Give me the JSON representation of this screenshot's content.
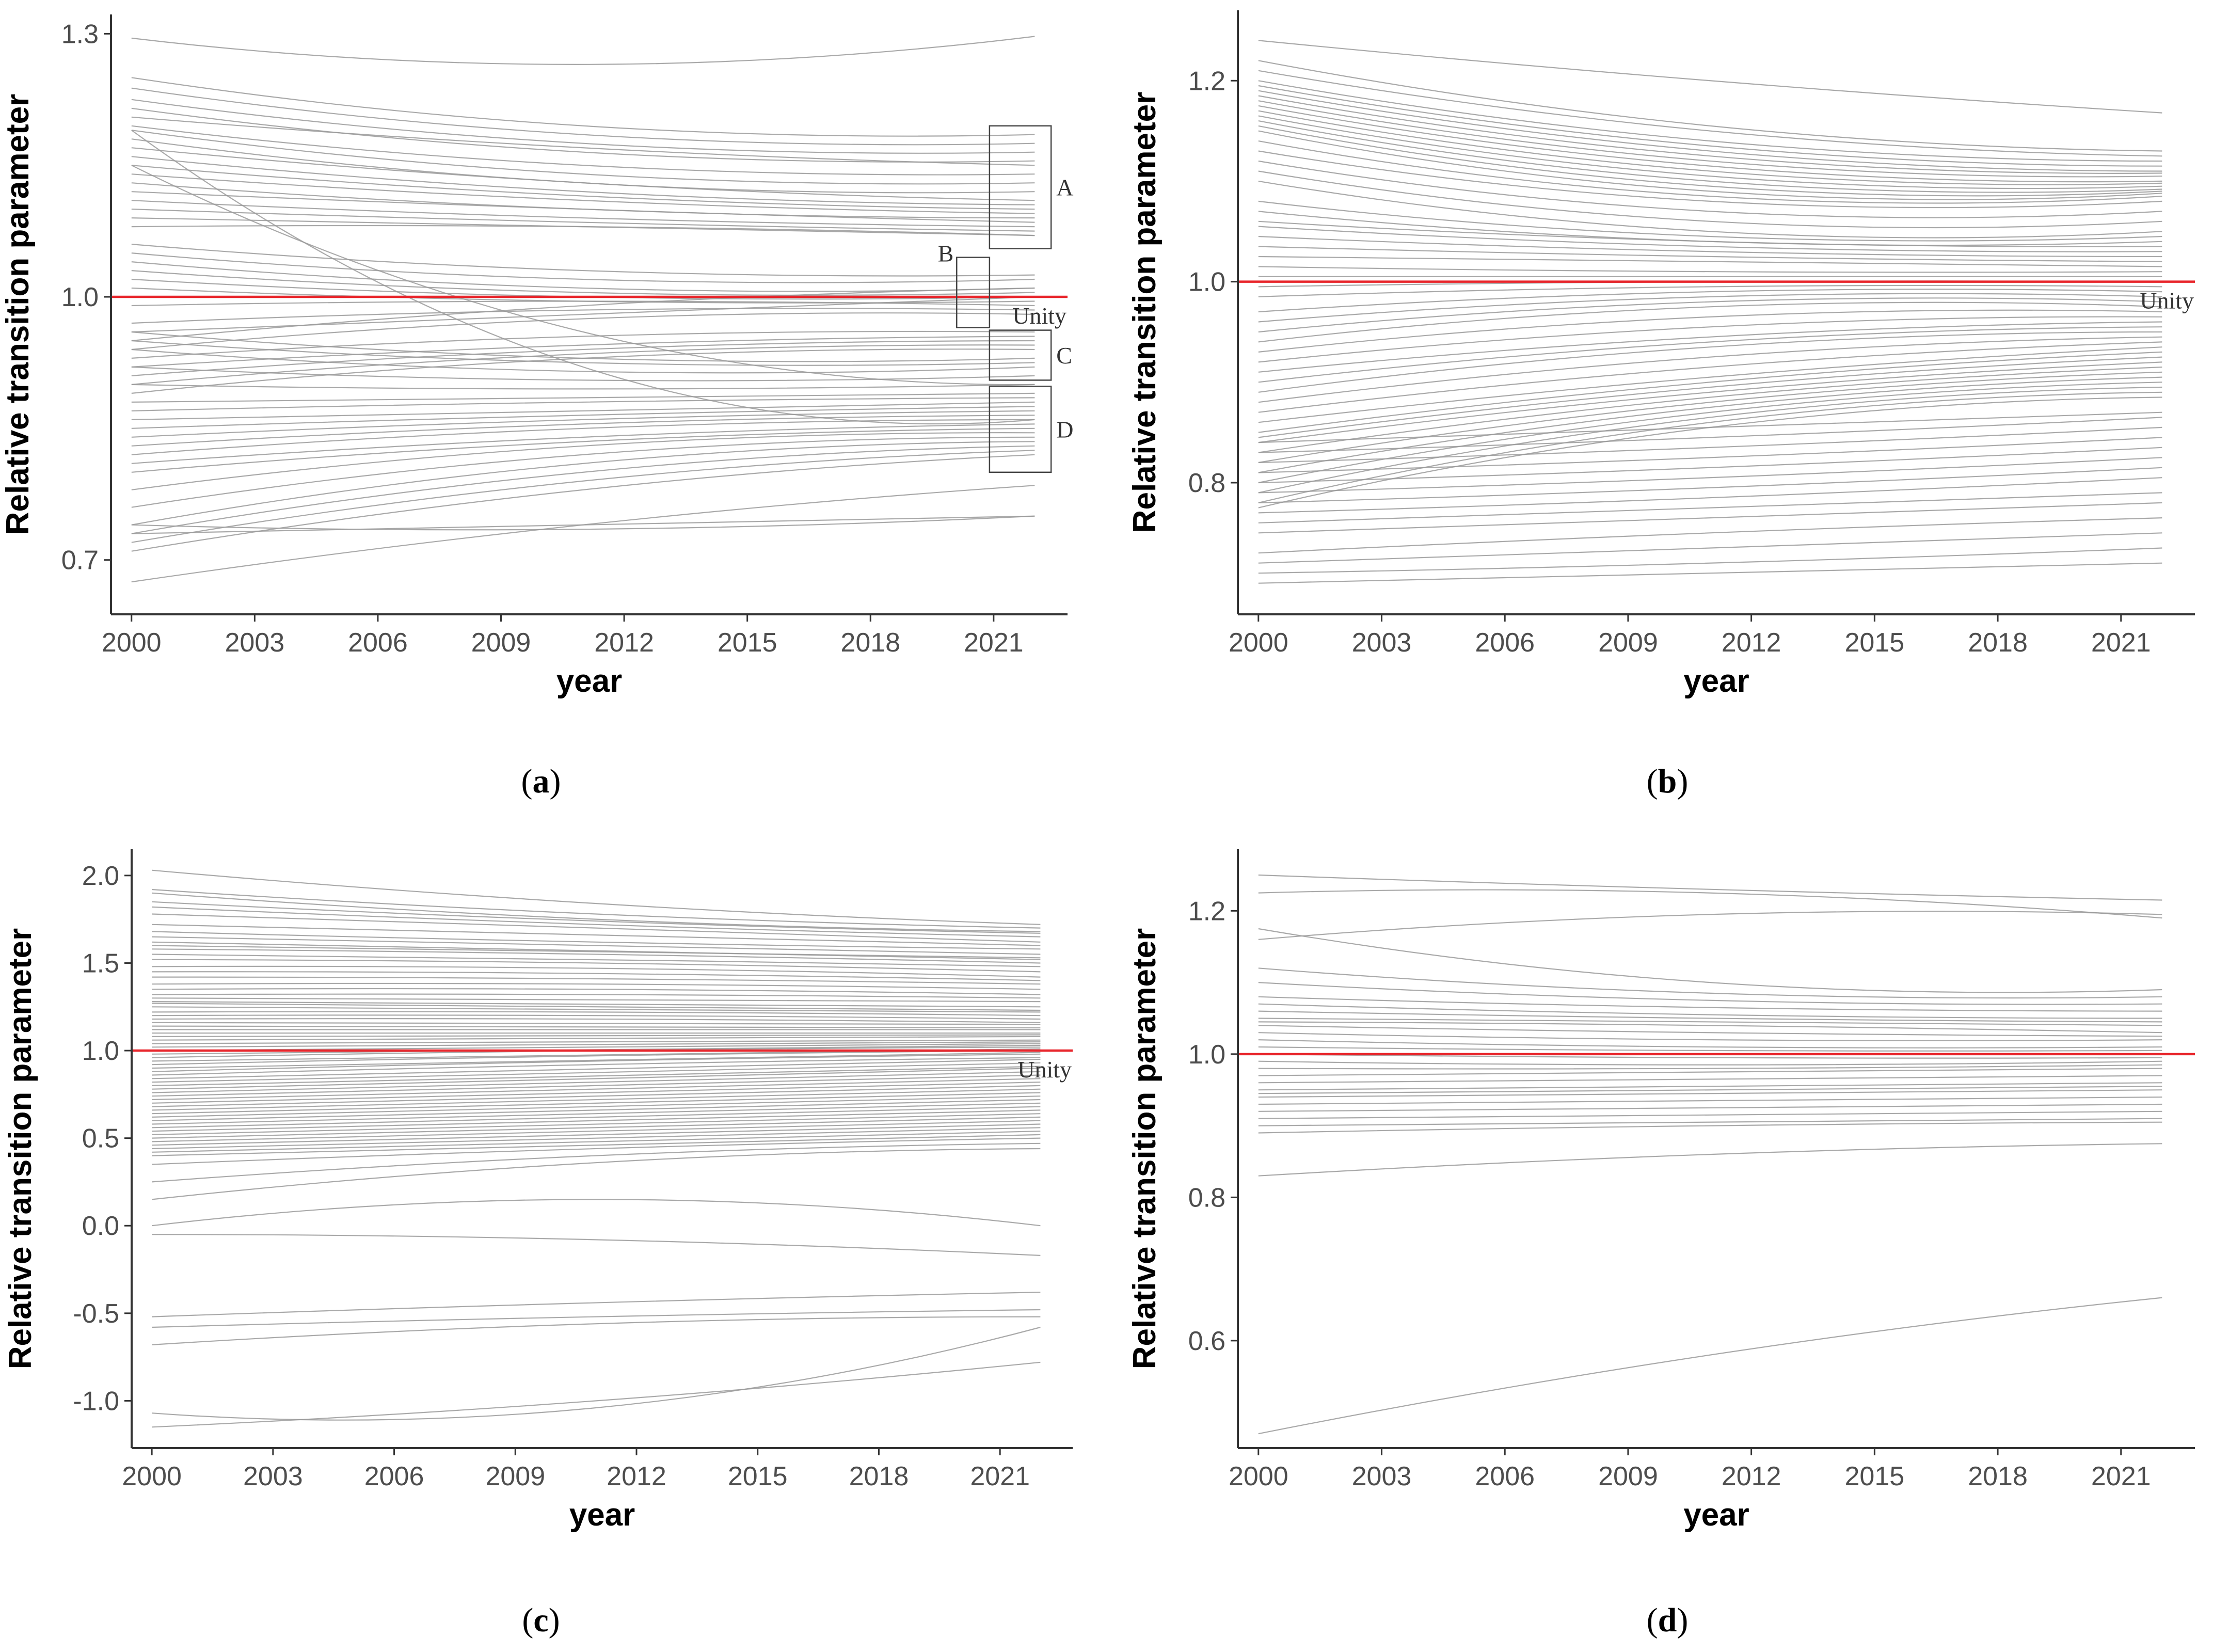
{
  "colors": {
    "series": "#9a9a9a",
    "unity": "#e8262c",
    "axis": "#333333",
    "annotation_box": "#444444"
  },
  "chart_data": [
    {
      "id": "a",
      "type": "line",
      "panel_label": "(a)",
      "panel_letter": "a",
      "xlabel": "year",
      "ylabel": "Relative transition parameter",
      "xlim": [
        1999.5,
        2022.8
      ],
      "ylim": [
        0.638,
        1.322
      ],
      "xticks": [
        2000,
        2003,
        2006,
        2009,
        2012,
        2015,
        2018,
        2021
      ],
      "yticks": [
        0.7,
        1.0,
        1.3
      ],
      "ytick_labels": [
        "0.7",
        "1.0",
        "1.3"
      ],
      "x_start": 2000,
      "x_end": 2022,
      "reference_line": {
        "y": 1.0,
        "label": "Unity"
      },
      "series_count": 60,
      "series_profile": [
        [
          1.295,
          1.265,
          1.297
        ],
        [
          1.25,
          1.195,
          1.185
        ],
        [
          1.238,
          1.185,
          1.175
        ],
        [
          1.225,
          1.175,
          1.165
        ],
        [
          1.215,
          1.165,
          1.155
        ],
        [
          1.205,
          1.17,
          1.15
        ],
        [
          1.195,
          1.15,
          1.14
        ],
        [
          1.19,
          1.14,
          1.13
        ],
        [
          1.18,
          1.13,
          1.12
        ],
        [
          1.17,
          1.13,
          1.11
        ],
        [
          1.16,
          1.12,
          1.105
        ],
        [
          1.15,
          1.115,
          1.1
        ],
        [
          1.14,
          1.11,
          1.095
        ],
        [
          1.13,
          1.1,
          1.09
        ],
        [
          1.12,
          1.1,
          1.085
        ],
        [
          1.11,
          1.09,
          1.08
        ],
        [
          1.1,
          1.085,
          1.075
        ],
        [
          1.09,
          1.08,
          1.07
        ],
        [
          1.08,
          1.08,
          1.07
        ],
        [
          1.19,
          0.92,
          0.86
        ],
        [
          1.15,
          0.96,
          0.9
        ],
        [
          1.06,
          1.03,
          1.025
        ],
        [
          1.05,
          1.02,
          1.02
        ],
        [
          1.04,
          1.01,
          1.01
        ],
        [
          1.03,
          1.005,
          1.005
        ],
        [
          1.02,
          1.0,
          1.0
        ],
        [
          1.01,
          0.995,
          0.995
        ],
        [
          0.99,
          0.995,
          0.99
        ],
        [
          0.97,
          0.985,
          0.985
        ],
        [
          0.96,
          0.98,
          1.0
        ],
        [
          0.95,
          0.99,
          1.01
        ],
        [
          0.94,
          0.975,
          0.98
        ],
        [
          0.93,
          0.955,
          0.96
        ],
        [
          0.92,
          0.945,
          0.955
        ],
        [
          0.91,
          0.94,
          0.95
        ],
        [
          0.9,
          0.935,
          0.945
        ],
        [
          0.89,
          0.93,
          0.94
        ],
        [
          0.96,
          0.93,
          0.93
        ],
        [
          0.95,
          0.925,
          0.925
        ],
        [
          0.94,
          0.915,
          0.92
        ],
        [
          0.92,
          0.905,
          0.91
        ],
        [
          0.9,
          0.895,
          0.9
        ],
        [
          0.88,
          0.885,
          0.89
        ],
        [
          0.87,
          0.88,
          0.885
        ],
        [
          0.86,
          0.87,
          0.88
        ],
        [
          0.85,
          0.865,
          0.875
        ],
        [
          0.84,
          0.86,
          0.87
        ],
        [
          0.83,
          0.855,
          0.865
        ],
        [
          0.82,
          0.85,
          0.86
        ],
        [
          0.81,
          0.84,
          0.855
        ],
        [
          0.8,
          0.835,
          0.85
        ],
        [
          0.78,
          0.83,
          0.845
        ],
        [
          0.76,
          0.82,
          0.84
        ],
        [
          0.74,
          0.81,
          0.835
        ],
        [
          0.73,
          0.8,
          0.83
        ],
        [
          0.72,
          0.79,
          0.825
        ],
        [
          0.71,
          0.78,
          0.82
        ],
        [
          0.74,
          0.735,
          0.75
        ],
        [
          0.73,
          0.74,
          0.75
        ],
        [
          0.675,
          0.74,
          0.785
        ]
      ],
      "annotations": [
        {
          "label": "A",
          "x0": 2020.9,
          "x1": 2022.4,
          "y0": 1.055,
          "y1": 1.195
        },
        {
          "label": "B",
          "x0": 2020.1,
          "x1": 2020.9,
          "y0": 0.965,
          "y1": 1.045
        },
        {
          "label": "C",
          "x0": 2020.9,
          "x1": 2022.4,
          "y0": 0.905,
          "y1": 0.962
        },
        {
          "label": "D",
          "x0": 2020.9,
          "x1": 2022.4,
          "y0": 0.8,
          "y1": 0.898
        }
      ]
    },
    {
      "id": "b",
      "type": "line",
      "panel_label": "(b)",
      "panel_letter": "b",
      "xlabel": "year",
      "ylabel": "Relative transition parameter",
      "xlim": [
        1999.5,
        2022.8
      ],
      "ylim": [
        0.669,
        1.27
      ],
      "xticks": [
        2000,
        2003,
        2006,
        2009,
        2012,
        2015,
        2018,
        2021
      ],
      "yticks": [
        0.8,
        1.0,
        1.2
      ],
      "ytick_labels": [
        "0.8",
        "1.0",
        "1.2"
      ],
      "x_start": 2000,
      "x_end": 2022,
      "reference_line": {
        "y": 1.0,
        "label": "Unity"
      },
      "series_count": 66,
      "series_profile": [
        [
          1.24,
          1.2,
          1.168
        ],
        [
          1.22,
          1.155,
          1.13
        ],
        [
          1.21,
          1.15,
          1.125
        ],
        [
          1.2,
          1.14,
          1.12
        ],
        [
          1.195,
          1.135,
          1.115
        ],
        [
          1.19,
          1.13,
          1.11
        ],
        [
          1.185,
          1.125,
          1.108
        ],
        [
          1.18,
          1.12,
          1.105
        ],
        [
          1.175,
          1.115,
          1.1
        ],
        [
          1.17,
          1.11,
          1.098
        ],
        [
          1.165,
          1.105,
          1.095
        ],
        [
          1.16,
          1.1,
          1.092
        ],
        [
          1.155,
          1.095,
          1.09
        ],
        [
          1.15,
          1.09,
          1.088
        ],
        [
          1.14,
          1.085,
          1.085
        ],
        [
          1.13,
          1.08,
          1.08
        ],
        [
          1.12,
          1.07,
          1.07
        ],
        [
          1.11,
          1.06,
          1.06
        ],
        [
          1.1,
          1.05,
          1.05
        ],
        [
          1.08,
          1.045,
          1.045
        ],
        [
          1.07,
          1.04,
          1.04
        ],
        [
          1.06,
          1.04,
          1.035
        ],
        [
          1.055,
          1.035,
          1.03
        ],
        [
          1.045,
          1.03,
          1.025
        ],
        [
          1.035,
          1.025,
          1.02
        ],
        [
          1.025,
          1.02,
          1.015
        ],
        [
          1.015,
          1.01,
          1.01
        ],
        [
          1.005,
          1.005,
          1.005
        ],
        [
          0.995,
          1.0,
          1.0
        ],
        [
          0.985,
          0.995,
          0.995
        ],
        [
          0.97,
          0.99,
          0.99
        ],
        [
          0.96,
          0.985,
          0.985
        ],
        [
          0.95,
          0.98,
          0.98
        ],
        [
          0.94,
          0.975,
          0.975
        ],
        [
          0.93,
          0.965,
          0.97
        ],
        [
          0.92,
          0.955,
          0.965
        ],
        [
          0.91,
          0.945,
          0.96
        ],
        [
          0.9,
          0.94,
          0.955
        ],
        [
          0.89,
          0.935,
          0.95
        ],
        [
          0.88,
          0.925,
          0.945
        ],
        [
          0.87,
          0.915,
          0.94
        ],
        [
          0.86,
          0.905,
          0.935
        ],
        [
          0.85,
          0.9,
          0.93
        ],
        [
          0.845,
          0.895,
          0.925
        ],
        [
          0.84,
          0.89,
          0.92
        ],
        [
          0.83,
          0.885,
          0.915
        ],
        [
          0.82,
          0.88,
          0.91
        ],
        [
          0.81,
          0.875,
          0.905
        ],
        [
          0.8,
          0.87,
          0.9
        ],
        [
          0.79,
          0.865,
          0.895
        ],
        [
          0.78,
          0.86,
          0.89
        ],
        [
          0.775,
          0.855,
          0.885
        ],
        [
          0.84,
          0.855,
          0.87
        ],
        [
          0.83,
          0.845,
          0.865
        ],
        [
          0.82,
          0.835,
          0.855
        ],
        [
          0.81,
          0.825,
          0.845
        ],
        [
          0.8,
          0.815,
          0.835
        ],
        [
          0.79,
          0.805,
          0.825
        ],
        [
          0.78,
          0.795,
          0.815
        ],
        [
          0.77,
          0.785,
          0.805
        ],
        [
          0.76,
          0.775,
          0.79
        ],
        [
          0.75,
          0.765,
          0.78
        ],
        [
          0.73,
          0.75,
          0.765
        ],
        [
          0.72,
          0.735,
          0.75
        ],
        [
          0.71,
          0.72,
          0.735
        ],
        [
          0.7,
          0.71,
          0.72
        ]
      ]
    },
    {
      "id": "c",
      "type": "line",
      "panel_label": "(c)",
      "panel_letter": "c",
      "xlabel": "year",
      "ylabel": "Relative transition parameter",
      "xlim": [
        1999.5,
        2022.8
      ],
      "ylim": [
        -1.27,
        2.15
      ],
      "xticks": [
        2000,
        2003,
        2006,
        2009,
        2012,
        2015,
        2018,
        2021
      ],
      "yticks": [
        -1.0,
        -0.5,
        0.0,
        0.5,
        1.0,
        1.5,
        2.0
      ],
      "ytick_labels": [
        "-1.0",
        "-0.5",
        "0.0",
        "0.5",
        "1.0",
        "1.5",
        "2.0"
      ],
      "x_start": 2000,
      "x_end": 2022,
      "reference_line": {
        "y": 1.0,
        "label": "Unity"
      },
      "series_count": 76,
      "series_profile": [
        [
          2.03,
          1.84,
          1.72
        ],
        [
          1.92,
          1.78,
          1.7
        ],
        [
          1.9,
          1.75,
          1.68
        ],
        [
          1.82,
          1.72,
          1.65
        ],
        [
          1.78,
          1.7,
          1.62
        ],
        [
          1.72,
          1.66,
          1.6
        ],
        [
          1.68,
          1.62,
          1.58
        ],
        [
          1.65,
          1.6,
          1.55
        ],
        [
          1.62,
          1.57,
          1.52
        ],
        [
          1.58,
          1.55,
          1.5
        ],
        [
          1.55,
          1.52,
          1.48
        ],
        [
          1.52,
          1.5,
          1.45
        ],
        [
          1.48,
          1.47,
          1.42
        ],
        [
          1.45,
          1.44,
          1.4
        ],
        [
          1.42,
          1.41,
          1.38
        ],
        [
          1.38,
          1.38,
          1.35
        ],
        [
          1.35,
          1.35,
          1.32
        ],
        [
          1.32,
          1.32,
          1.3
        ],
        [
          1.3,
          1.29,
          1.28
        ],
        [
          1.28,
          1.27,
          1.25
        ],
        [
          1.25,
          1.24,
          1.22
        ],
        [
          1.22,
          1.22,
          1.2
        ],
        [
          1.2,
          1.2,
          1.18
        ],
        [
          1.18,
          1.18,
          1.16
        ],
        [
          1.16,
          1.16,
          1.15
        ],
        [
          1.14,
          1.14,
          1.13
        ],
        [
          1.12,
          1.12,
          1.12
        ],
        [
          1.1,
          1.1,
          1.1
        ],
        [
          1.08,
          1.09,
          1.09
        ],
        [
          1.06,
          1.07,
          1.08
        ],
        [
          1.04,
          1.05,
          1.06
        ],
        [
          1.02,
          1.04,
          1.05
        ],
        [
          1.0,
          1.02,
          1.04
        ],
        [
          0.98,
          1.01,
          1.03
        ],
        [
          0.96,
          1.0,
          1.02
        ],
        [
          0.94,
          0.98,
          1.01
        ],
        [
          0.92,
          0.97,
          1.0
        ],
        [
          0.9,
          0.95,
          0.99
        ],
        [
          0.88,
          0.94,
          0.98
        ],
        [
          0.86,
          0.92,
          0.96
        ],
        [
          0.84,
          0.9,
          0.95
        ],
        [
          0.82,
          0.88,
          0.93
        ],
        [
          0.8,
          0.86,
          0.91
        ],
        [
          0.78,
          0.84,
          0.9
        ],
        [
          0.76,
          0.82,
          0.88
        ],
        [
          0.74,
          0.8,
          0.86
        ],
        [
          0.72,
          0.78,
          0.84
        ],
        [
          0.7,
          0.76,
          0.82
        ],
        [
          0.68,
          0.74,
          0.8
        ],
        [
          0.66,
          0.72,
          0.78
        ],
        [
          0.64,
          0.7,
          0.76
        ],
        [
          0.62,
          0.68,
          0.74
        ],
        [
          0.6,
          0.66,
          0.72
        ],
        [
          0.58,
          0.64,
          0.7
        ],
        [
          0.56,
          0.62,
          0.68
        ],
        [
          0.54,
          0.6,
          0.66
        ],
        [
          0.52,
          0.58,
          0.64
        ],
        [
          0.5,
          0.56,
          0.62
        ],
        [
          0.48,
          0.54,
          0.6
        ],
        [
          0.46,
          0.52,
          0.58
        ],
        [
          0.44,
          0.5,
          0.56
        ],
        [
          0.42,
          0.48,
          0.54
        ],
        [
          0.4,
          0.46,
          0.52
        ],
        [
          0.35,
          0.44,
          0.5
        ],
        [
          0.25,
          0.4,
          0.47
        ],
        [
          0.15,
          0.36,
          0.44
        ],
        [
          0.0,
          0.15,
          0.0
        ],
        [
          -0.05,
          -0.08,
          -0.17
        ],
        [
          -0.52,
          -0.44,
          -0.38
        ],
        [
          -0.58,
          -0.52,
          -0.48
        ],
        [
          -0.68,
          -0.56,
          -0.52
        ],
        [
          -1.07,
          -1.04,
          -0.58
        ],
        [
          -1.15,
          -1.0,
          -0.78
        ],
        [
          1.85,
          1.74,
          1.67
        ],
        [
          1.6,
          1.56,
          1.53
        ],
        [
          1.27,
          1.25,
          1.23
        ]
      ]
    },
    {
      "id": "d",
      "type": "line",
      "panel_label": "(d)",
      "panel_letter": "d",
      "xlabel": "year",
      "ylabel": "Relative transition parameter",
      "xlim": [
        1999.5,
        2022.8
      ],
      "ylim": [
        0.45,
        1.286
      ],
      "xticks": [
        2000,
        2003,
        2006,
        2009,
        2012,
        2015,
        2018,
        2021
      ],
      "yticks": [
        0.6,
        0.8,
        1.0,
        1.2
      ],
      "ytick_labels": [
        "0.6",
        "0.8",
        "1.0",
        "1.2"
      ],
      "x_start": 2000,
      "x_end": 2022,
      "reference_line": {
        "y": 1.0,
        "label": ""
      },
      "series_count": 30,
      "series_profile": [
        [
          1.25,
          1.23,
          1.215
        ],
        [
          1.225,
          1.225,
          1.19
        ],
        [
          1.16,
          1.195,
          1.195
        ],
        [
          1.175,
          1.1,
          1.09
        ],
        [
          1.12,
          1.085,
          1.08
        ],
        [
          1.1,
          1.075,
          1.07
        ],
        [
          1.08,
          1.065,
          1.06
        ],
        [
          1.07,
          1.055,
          1.05
        ],
        [
          1.06,
          1.05,
          1.045
        ],
        [
          1.05,
          1.045,
          1.04
        ],
        [
          1.045,
          1.04,
          1.03
        ],
        [
          1.04,
          1.03,
          1.025
        ],
        [
          1.03,
          1.02,
          1.02
        ],
        [
          1.02,
          1.01,
          1.01
        ],
        [
          1.01,
          1.005,
          1.005
        ],
        [
          1.0,
          0.995,
          0.995
        ],
        [
          0.99,
          0.985,
          0.99
        ],
        [
          0.98,
          0.98,
          0.985
        ],
        [
          0.97,
          0.975,
          0.98
        ],
        [
          0.96,
          0.965,
          0.97
        ],
        [
          0.95,
          0.955,
          0.96
        ],
        [
          0.945,
          0.95,
          0.955
        ],
        [
          0.94,
          0.945,
          0.95
        ],
        [
          0.93,
          0.935,
          0.94
        ],
        [
          0.92,
          0.925,
          0.93
        ],
        [
          0.91,
          0.915,
          0.92
        ],
        [
          0.9,
          0.905,
          0.91
        ],
        [
          0.89,
          0.9,
          0.905
        ],
        [
          0.83,
          0.86,
          0.875
        ],
        [
          0.47,
          0.58,
          0.66
        ]
      ]
    }
  ]
}
